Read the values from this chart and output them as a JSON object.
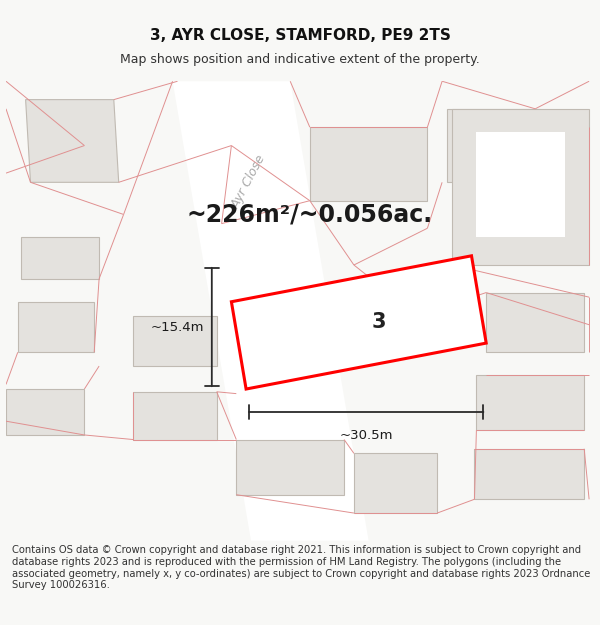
{
  "title": "3, AYR CLOSE, STAMFORD, PE9 2TS",
  "subtitle": "Map shows position and indicative extent of the property.",
  "footer": "Contains OS data © Crown copyright and database right 2021. This information is subject to Crown copyright and database rights 2023 and is reproduced with the permission of HM Land Registry. The polygons (including the associated geometry, namely x, y co-ordinates) are subject to Crown copyright and database rights 2023 Ordnance Survey 100026316.",
  "area_text": "~226m²/~0.056ac.",
  "dim_width": "~30.5m",
  "dim_height": "~15.4m",
  "label_num": "3",
  "bg_color": "#f8f8f6",
  "map_bg": "#f2f0ee",
  "building_fill": "#e4e2de",
  "building_outline": "#c0bab2",
  "highlight_fill": "#ffffff",
  "highlight_outline": "#ff0000",
  "line_color": "#2a2a2a",
  "boundary_color": "#e09090",
  "road_fill": "#ffffff",
  "title_fontsize": 11,
  "subtitle_fontsize": 9,
  "footer_fontsize": 7.2,
  "area_fontsize": 17,
  "label_fontsize": 15,
  "dim_fontsize": 9.5,
  "road_label_color": "#aaaaaa",
  "road_label_fontsize": 9
}
